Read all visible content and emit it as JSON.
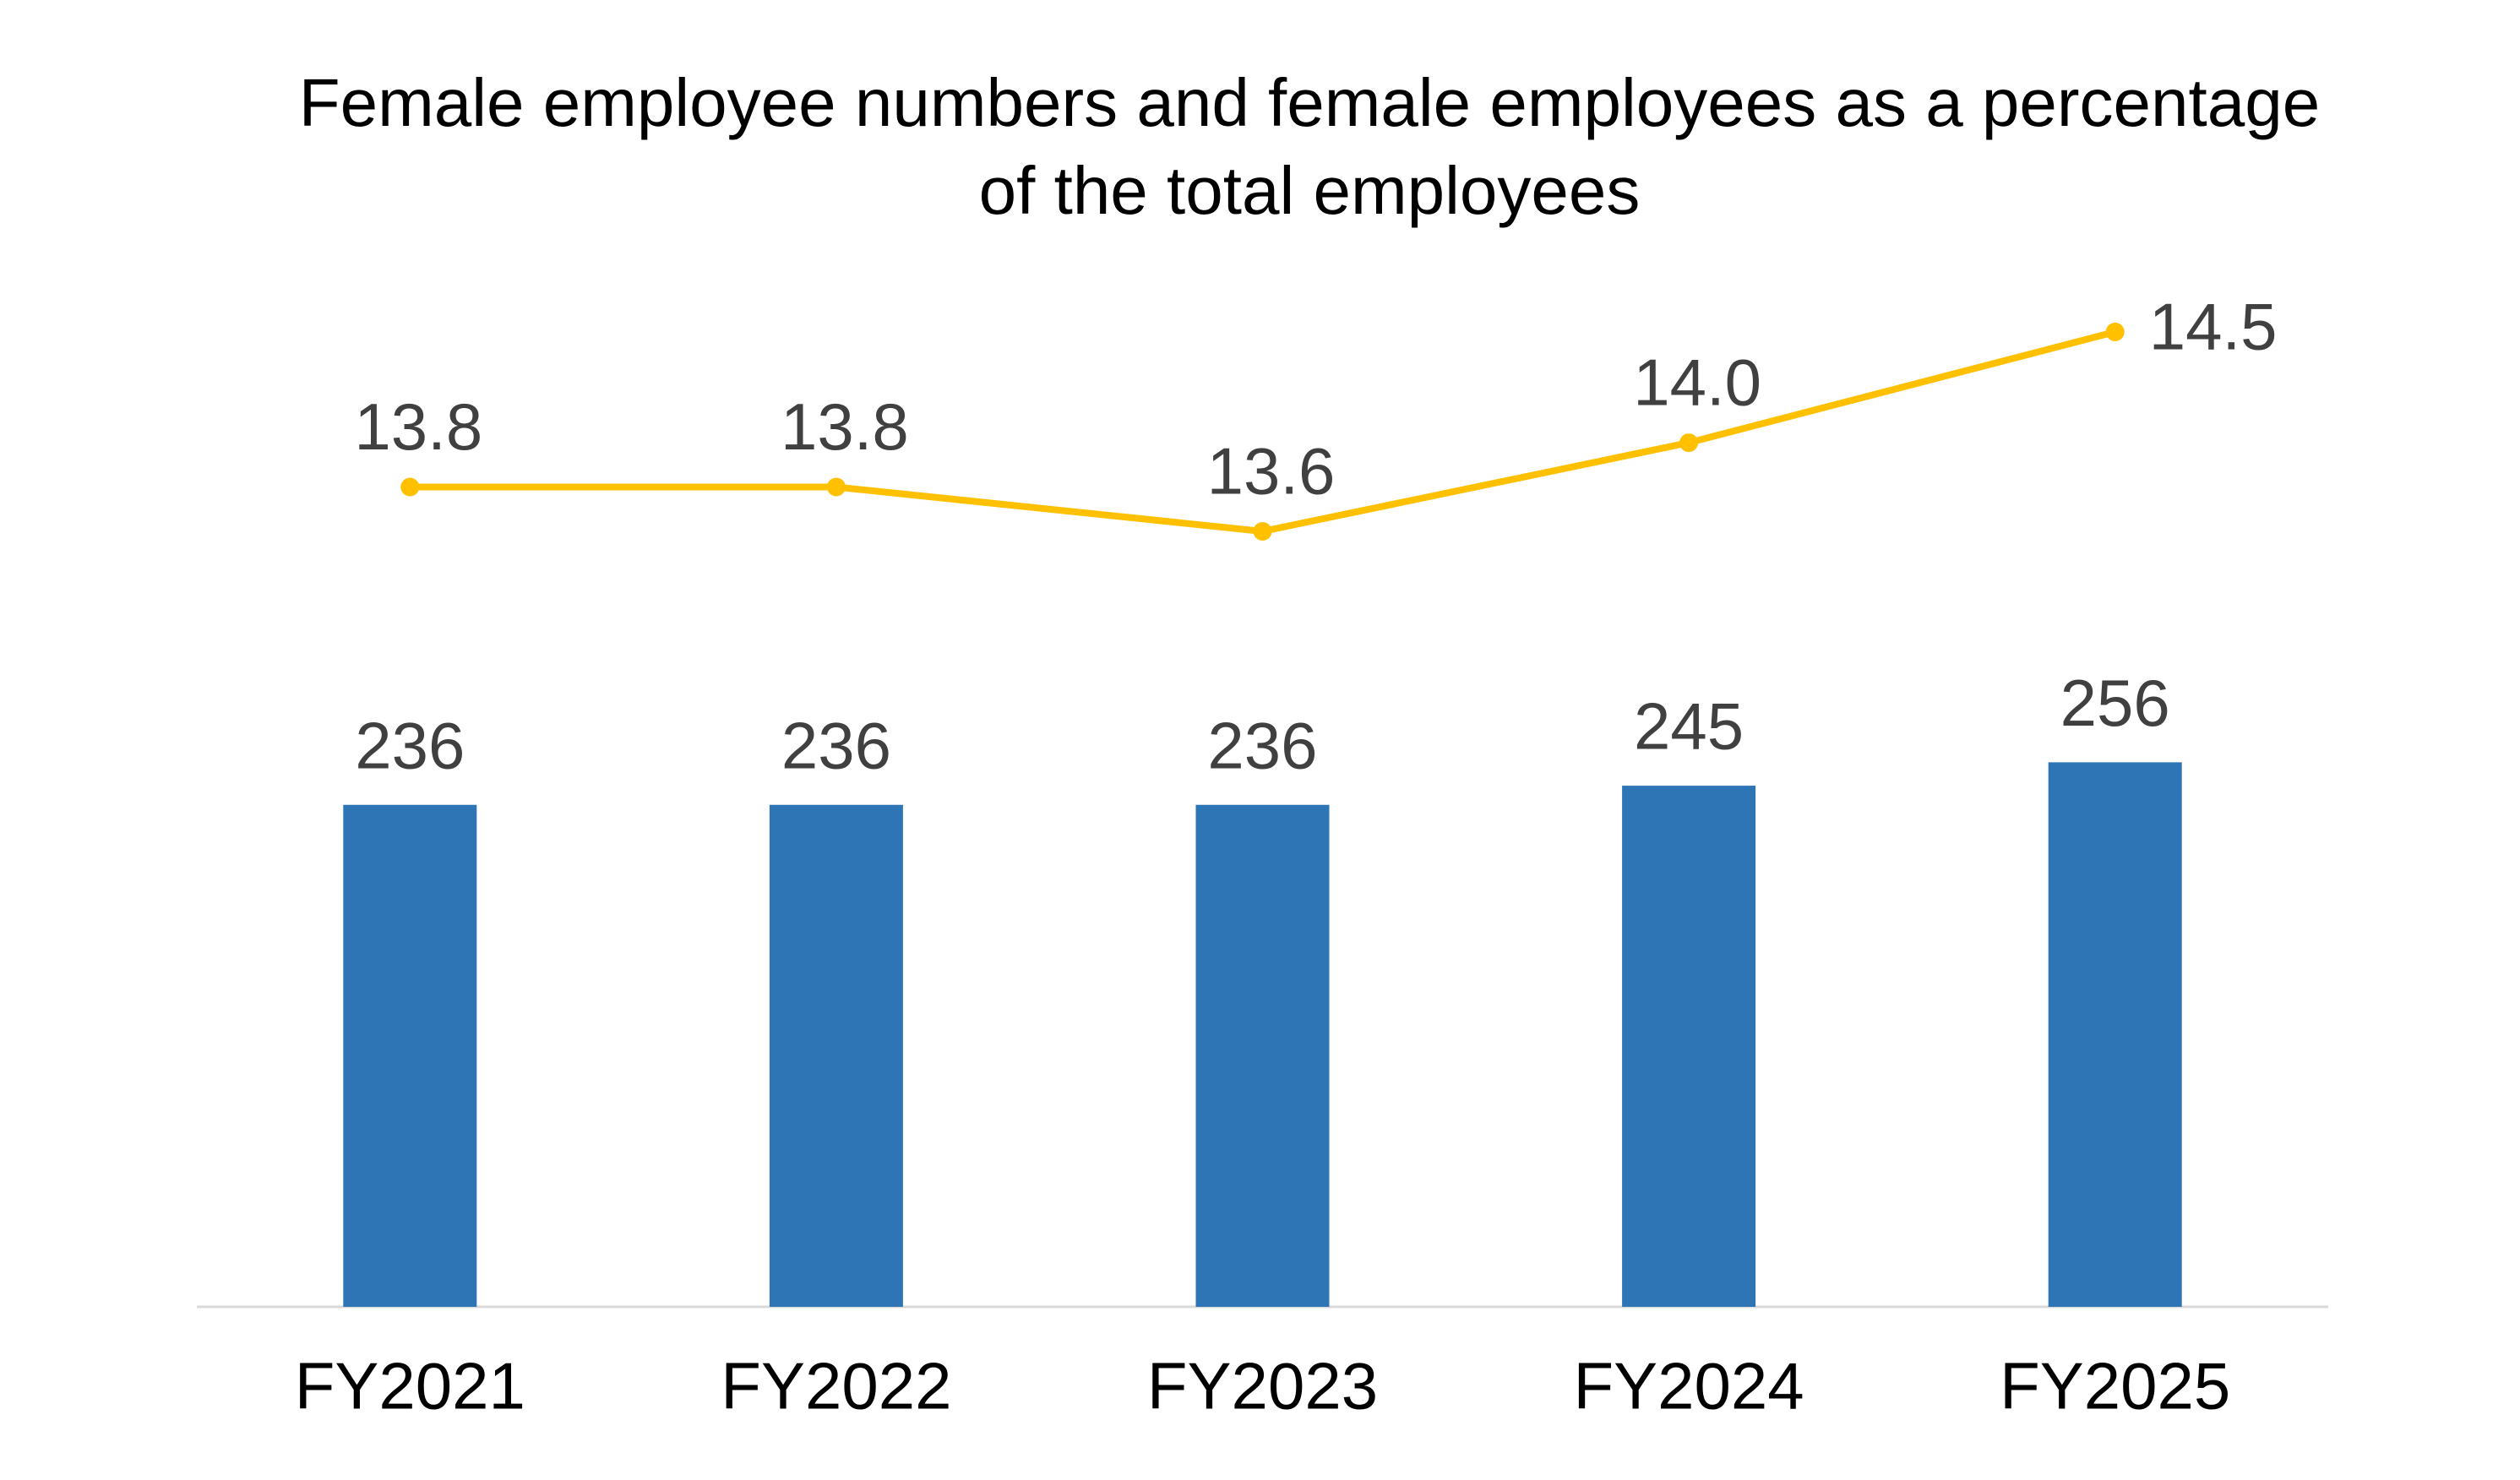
{
  "chart_data": {
    "type": "bar-line",
    "title": "Female employee numbers and female employees as a percentage of the total employees",
    "categories": [
      "FY2021",
      "FY2022",
      "FY2023",
      "FY2024",
      "FY2025"
    ],
    "series": [
      {
        "type": "bar",
        "color": "#2E75B6",
        "values": [
          236,
          236,
          236,
          245,
          256
        ]
      },
      {
        "type": "line",
        "axis": "y2",
        "color": "#FFC000",
        "values": [
          13.8,
          13.8,
          13.6,
          14.0,
          14.5
        ],
        "value_labels": [
          "13.8",
          "13.8",
          "13.6",
          "14.0",
          "14.5"
        ]
      }
    ],
    "ylim": [
      0,
      500
    ],
    "y2lim": [
      10.1,
      14.9
    ]
  }
}
